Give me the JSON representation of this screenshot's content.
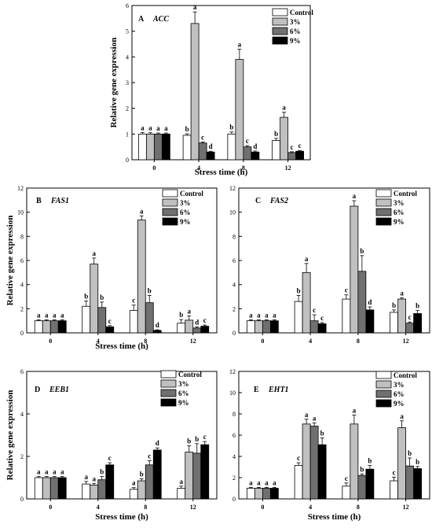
{
  "chart_data": [
    {
      "type": "bar",
      "panel": "A",
      "gene": "ACC",
      "xlabel": "Stress time (h)",
      "ylabel": "Relative gene expression",
      "ylim": [
        0,
        6
      ],
      "yticks": [
        "0",
        "1",
        "2",
        "3",
        "4",
        "5",
        "6"
      ],
      "categories": [
        "0",
        "4",
        "8",
        "12"
      ],
      "legend": "top-right",
      "series": [
        {
          "name": "Control",
          "color": "#ffffff",
          "values": [
            1.0,
            0.95,
            1.0,
            0.75
          ],
          "errors": [
            0.06,
            0.06,
            0.08,
            0.08
          ],
          "labels": [
            "a",
            "b",
            "b",
            "b"
          ]
        },
        {
          "name": "3%",
          "color": "#c0c0c0",
          "values": [
            1.0,
            5.3,
            3.9,
            1.65
          ],
          "errors": [
            0.05,
            0.45,
            0.4,
            0.2
          ],
          "labels": [
            "a",
            "a",
            "a",
            "a"
          ]
        },
        {
          "name": "6%",
          "color": "#707070",
          "values": [
            1.0,
            0.65,
            0.5,
            0.28
          ],
          "errors": [
            0.04,
            0.04,
            0.05,
            0.03
          ],
          "labels": [
            "a",
            "c",
            "c",
            "c"
          ]
        },
        {
          "name": "9%",
          "color": "#000000",
          "values": [
            1.0,
            0.3,
            0.3,
            0.33
          ],
          "errors": [
            0.04,
            0.03,
            0.04,
            0.03
          ],
          "labels": [
            "a",
            "d",
            "d",
            "c"
          ]
        }
      ]
    },
    {
      "type": "bar",
      "panel": "B",
      "gene": "FAS1",
      "xlabel": "Stress time (h)",
      "ylabel": "Relative gene expression",
      "ylim": [
        0,
        12
      ],
      "yticks": [
        "0",
        "2",
        "4",
        "6",
        "8",
        "10",
        "12"
      ],
      "categories": [
        "0",
        "4",
        "8",
        "12"
      ],
      "legend": "top-right",
      "series": [
        {
          "name": "Control",
          "color": "#ffffff",
          "values": [
            1.0,
            2.2,
            1.85,
            0.8
          ],
          "errors": [
            0.08,
            0.45,
            0.45,
            0.3
          ],
          "labels": [
            "a",
            "b",
            "c",
            "b"
          ]
        },
        {
          "name": "3%",
          "color": "#c0c0c0",
          "values": [
            1.0,
            5.7,
            9.35,
            1.05
          ],
          "errors": [
            0.08,
            0.5,
            0.35,
            0.35
          ],
          "labels": [
            "a",
            "a",
            "a",
            "a"
          ]
        },
        {
          "name": "6%",
          "color": "#707070",
          "values": [
            1.0,
            2.1,
            2.5,
            0.4
          ],
          "errors": [
            0.08,
            0.45,
            0.6,
            0.1
          ],
          "labels": [
            "a",
            "b",
            "b",
            "d"
          ]
        },
        {
          "name": "9%",
          "color": "#000000",
          "values": [
            1.0,
            0.5,
            0.2,
            0.55
          ],
          "errors": [
            0.08,
            0.1,
            0.05,
            0.1
          ],
          "labels": [
            "a",
            "c",
            "d",
            "c"
          ]
        }
      ]
    },
    {
      "type": "bar",
      "panel": "C",
      "gene": "FAS2",
      "xlabel": "",
      "ylabel": "",
      "ylim": [
        0,
        12
      ],
      "yticks": [
        "0",
        "2",
        "4",
        "6",
        "8",
        "10",
        "12"
      ],
      "categories": [
        "0",
        "4",
        "8",
        "12"
      ],
      "legend": "top-right",
      "series": [
        {
          "name": "Control",
          "color": "#ffffff",
          "values": [
            1.0,
            2.6,
            2.8,
            1.7
          ],
          "errors": [
            0.08,
            0.5,
            0.35,
            0.2
          ],
          "labels": [
            "a",
            "b",
            "c",
            "b"
          ]
        },
        {
          "name": "3%",
          "color": "#c0c0c0",
          "values": [
            1.0,
            5.0,
            10.5,
            2.8
          ],
          "errors": [
            0.08,
            0.75,
            0.45,
            0.1
          ],
          "labels": [
            "a",
            "a",
            "a",
            "a"
          ]
        },
        {
          "name": "6%",
          "color": "#707070",
          "values": [
            1.0,
            1.0,
            5.1,
            0.8
          ],
          "errors": [
            0.08,
            0.5,
            1.3,
            0.1
          ],
          "labels": [
            "a",
            "c",
            "b",
            "c"
          ]
        },
        {
          "name": "9%",
          "color": "#000000",
          "values": [
            1.0,
            0.75,
            1.9,
            1.6
          ],
          "errors": [
            0.08,
            0.1,
            0.25,
            0.25
          ],
          "labels": [
            "a",
            "c",
            "d",
            "b"
          ]
        }
      ]
    },
    {
      "type": "bar",
      "panel": "D",
      "gene": "EEB1",
      "xlabel": "Stress time (h)",
      "ylabel": "Relative gene expression",
      "ylim": [
        0,
        6
      ],
      "yticks": [
        "0",
        "2",
        "4",
        "6"
      ],
      "categories": [
        "0",
        "4",
        "8",
        "12"
      ],
      "legend": "top-right",
      "series": [
        {
          "name": "Control",
          "color": "#ffffff",
          "values": [
            1.0,
            0.7,
            0.45,
            0.5
          ],
          "errors": [
            0.05,
            0.12,
            0.08,
            0.1
          ],
          "labels": [
            "a",
            "a",
            "a",
            "a"
          ]
        },
        {
          "name": "3%",
          "color": "#c0c0c0",
          "values": [
            1.0,
            0.65,
            0.85,
            2.2
          ],
          "errors": [
            0.05,
            0.08,
            0.1,
            0.3
          ],
          "labels": [
            "a",
            "a",
            "b",
            "b"
          ]
        },
        {
          "name": "6%",
          "color": "#707070",
          "values": [
            1.0,
            0.9,
            1.6,
            2.15
          ],
          "errors": [
            0.05,
            0.15,
            0.2,
            0.45
          ],
          "labels": [
            "a",
            "b",
            "c",
            "b"
          ]
        },
        {
          "name": "9%",
          "color": "#000000",
          "values": [
            1.0,
            1.6,
            2.3,
            2.55
          ],
          "errors": [
            0.05,
            0.1,
            0.1,
            0.15
          ],
          "labels": [
            "a",
            "c",
            "d",
            "c"
          ]
        }
      ]
    },
    {
      "type": "bar",
      "panel": "E",
      "gene": "EHT1",
      "xlabel": "Stress time (h)",
      "ylabel": "",
      "ylim": [
        0,
        12
      ],
      "yticks": [
        "0",
        "2",
        "4",
        "6",
        "8",
        "10",
        "12"
      ],
      "categories": [
        "0",
        "4",
        "8",
        "12"
      ],
      "legend": "top-right",
      "series": [
        {
          "name": "Control",
          "color": "#ffffff",
          "values": [
            1.0,
            3.15,
            1.2,
            1.7
          ],
          "errors": [
            0.08,
            0.25,
            0.3,
            0.35
          ],
          "labels": [
            "a",
            "c",
            "c",
            "c"
          ]
        },
        {
          "name": "3%",
          "color": "#c0c0c0",
          "values": [
            1.0,
            7.05,
            7.05,
            6.7
          ],
          "errors": [
            0.08,
            0.45,
            0.85,
            0.65
          ],
          "labels": [
            "a",
            "a",
            "a",
            "a"
          ]
        },
        {
          "name": "6%",
          "color": "#707070",
          "values": [
            1.0,
            6.85,
            2.2,
            3.1
          ],
          "errors": [
            0.08,
            0.3,
            0.15,
            0.75
          ],
          "labels": [
            "a",
            "a",
            "b",
            "b"
          ]
        },
        {
          "name": "9%",
          "color": "#000000",
          "values": [
            1.0,
            5.1,
            2.8,
            2.85
          ],
          "errors": [
            0.08,
            0.65,
            0.35,
            0.2
          ],
          "labels": [
            "a",
            "b",
            "b",
            "b"
          ]
        }
      ]
    }
  ]
}
